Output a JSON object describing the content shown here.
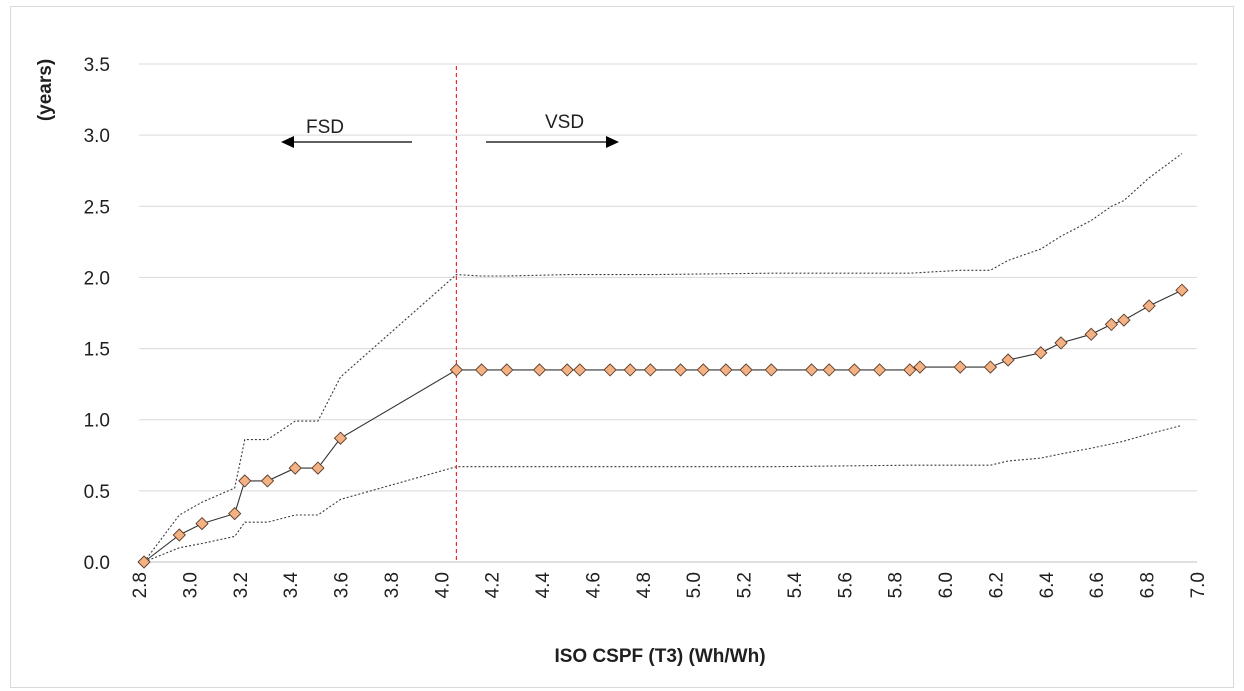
{
  "chart_data": {
    "type": "line",
    "title": "",
    "xlabel": "ISO CSPF (T3) (Wh/Wh)",
    "ylabel": "(years)",
    "xlim": [
      2.8,
      7.0
    ],
    "ylim": [
      0.0,
      3.5
    ],
    "xticks": [
      "2.8",
      "3.0",
      "3.2",
      "3.4",
      "3.6",
      "3.8",
      "4.0",
      "4.2",
      "4.4",
      "4.6",
      "4.8",
      "5.0",
      "5.2",
      "5.4",
      "5.6",
      "5.8",
      "6.0",
      "6.2",
      "6.4",
      "6.6",
      "6.8",
      "7.0"
    ],
    "yticks": [
      "0.0",
      "0.5",
      "1.0",
      "1.5",
      "2.0",
      "2.5",
      "3.0",
      "3.5"
    ],
    "grid": true,
    "series": [
      {
        "role": "main",
        "marker": "diamond",
        "color": "#f4b183",
        "x": [
          2.82,
          2.96,
          3.05,
          3.18,
          3.22,
          3.31,
          3.42,
          3.51,
          3.6,
          4.06,
          4.16,
          4.26,
          4.39,
          4.5,
          4.55,
          4.67,
          4.75,
          4.83,
          4.95,
          5.04,
          5.13,
          5.21,
          5.31,
          5.47,
          5.54,
          5.64,
          5.74,
          5.86,
          5.9,
          6.06,
          6.18,
          6.25,
          6.38,
          6.46,
          6.58,
          6.66,
          6.71,
          6.81,
          6.94
        ],
        "y": [
          0.0,
          0.19,
          0.27,
          0.34,
          0.57,
          0.57,
          0.66,
          0.66,
          0.87,
          1.35,
          1.35,
          1.35,
          1.35,
          1.35,
          1.35,
          1.35,
          1.35,
          1.35,
          1.35,
          1.35,
          1.35,
          1.35,
          1.35,
          1.35,
          1.35,
          1.35,
          1.35,
          1.35,
          1.37,
          1.37,
          1.37,
          1.42,
          1.47,
          1.54,
          1.6,
          1.67,
          1.7,
          1.8,
          1.91
        ]
      },
      {
        "role": "upper-bound",
        "style": "dotted",
        "x": [
          2.82,
          2.96,
          3.05,
          3.18,
          3.22,
          3.31,
          3.42,
          3.51,
          3.6,
          4.06,
          4.16,
          4.26,
          4.5,
          4.83,
          5.31,
          5.86,
          6.06,
          6.18,
          6.25,
          6.38,
          6.46,
          6.58,
          6.66,
          6.71,
          6.81,
          6.94
        ],
        "y": [
          0.0,
          0.33,
          0.42,
          0.52,
          0.86,
          0.86,
          0.99,
          0.99,
          1.3,
          2.02,
          2.01,
          2.01,
          2.02,
          2.02,
          2.03,
          2.03,
          2.05,
          2.05,
          2.12,
          2.2,
          2.29,
          2.4,
          2.5,
          2.54,
          2.7,
          2.87
        ]
      },
      {
        "role": "lower-bound",
        "style": "dotted",
        "x": [
          2.82,
          2.96,
          3.05,
          3.18,
          3.22,
          3.31,
          3.42,
          3.51,
          3.6,
          4.06,
          4.16,
          4.26,
          4.5,
          4.83,
          5.31,
          5.86,
          6.06,
          6.18,
          6.25,
          6.38,
          6.46,
          6.58,
          6.66,
          6.71,
          6.81,
          6.94
        ],
        "y": [
          0.0,
          0.1,
          0.13,
          0.18,
          0.28,
          0.28,
          0.33,
          0.33,
          0.44,
          0.67,
          0.67,
          0.67,
          0.67,
          0.67,
          0.67,
          0.68,
          0.68,
          0.68,
          0.71,
          0.73,
          0.76,
          0.8,
          0.83,
          0.85,
          0.9,
          0.96
        ]
      }
    ],
    "annotations": {
      "divider_x": 4.06,
      "divider_color": "#e8312b",
      "left_label": "FSD",
      "right_label": "VSD"
    }
  }
}
